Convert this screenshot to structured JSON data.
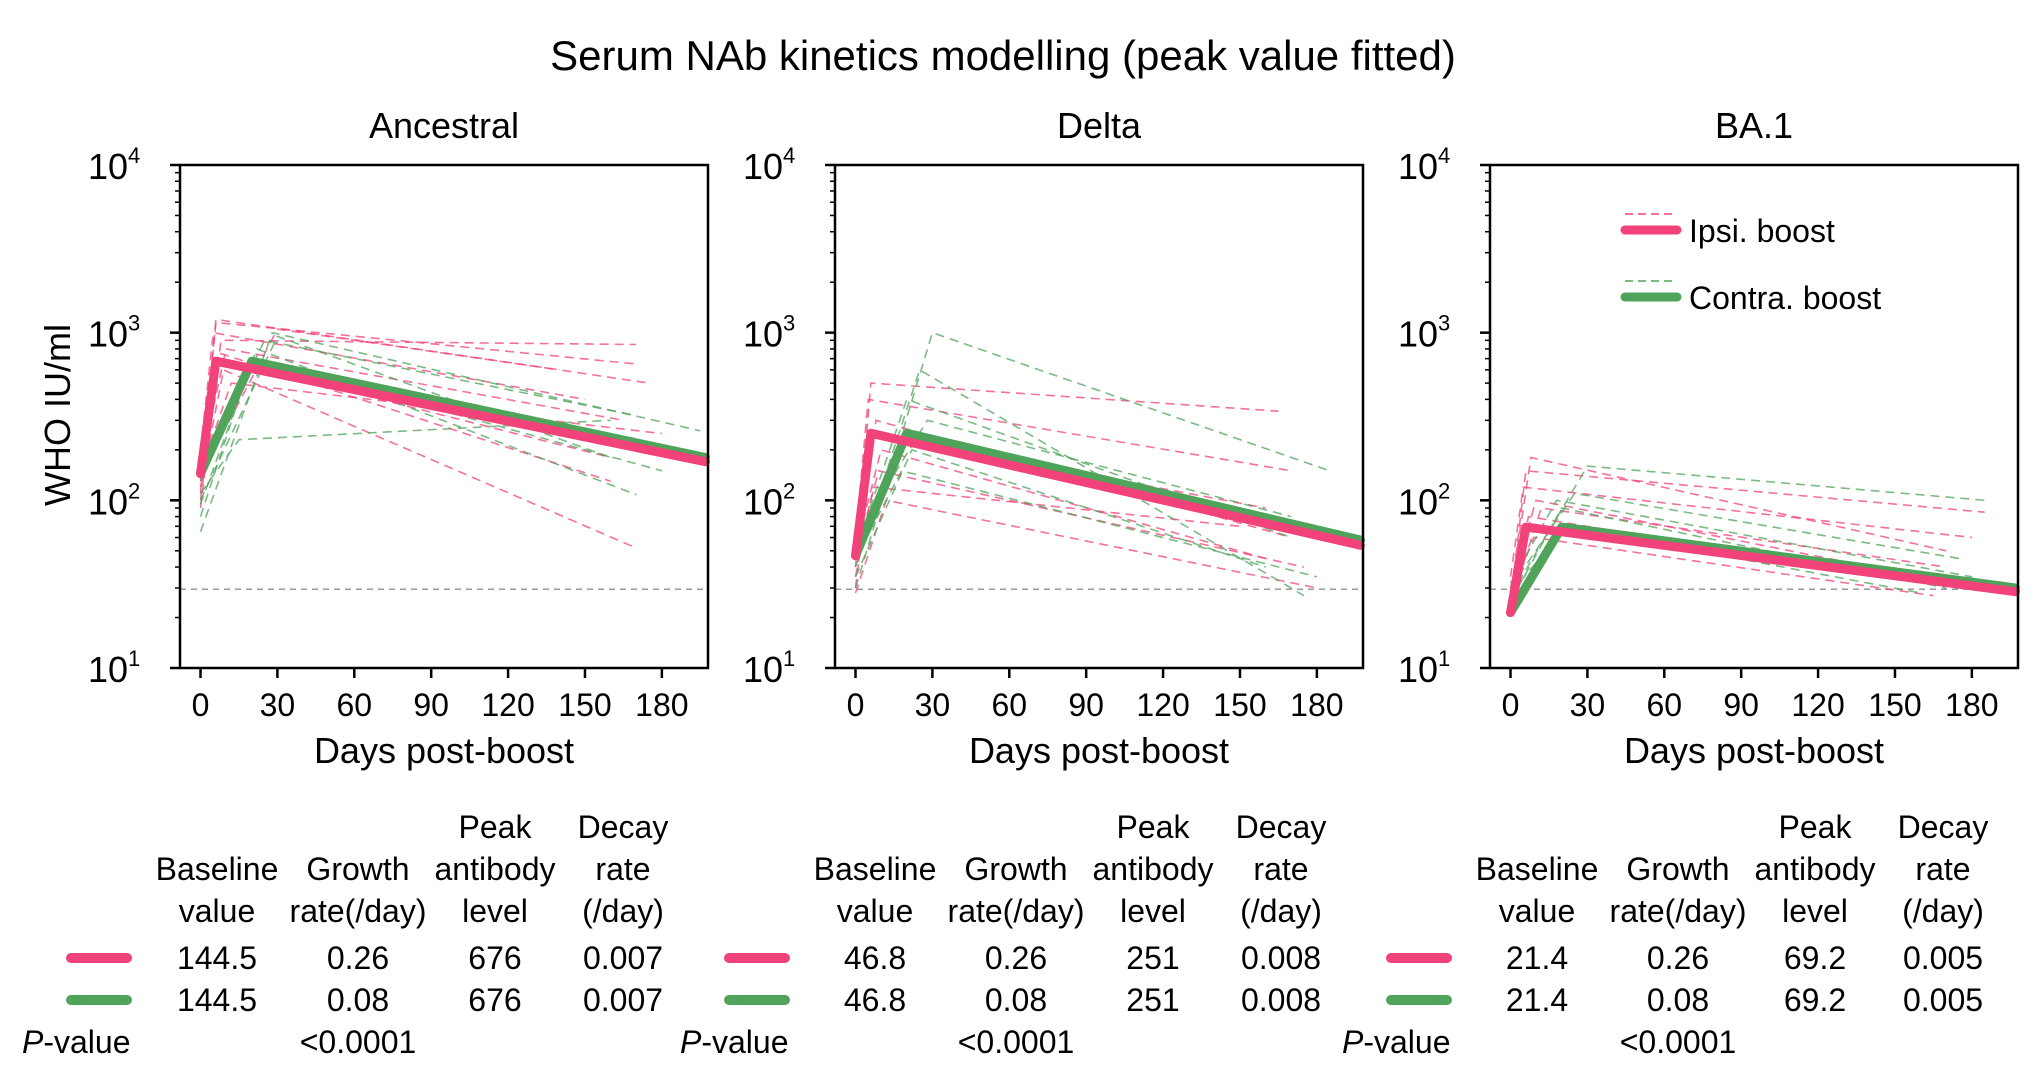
{
  "title": "Serum NAb kinetics modelling (peak value fitted)",
  "colors": {
    "ipsi": "#F2427A",
    "contra": "#4FA35A",
    "lod": "#999999"
  },
  "table_headers": {
    "baseline": [
      "Baseline",
      "value"
    ],
    "growth": [
      "Growth",
      "rate(/day)"
    ],
    "peak": [
      "Peak",
      "antibody",
      "level"
    ],
    "decay": [
      "Decay",
      "rate",
      "(/day)"
    ]
  },
  "p_label_italic": "P",
  "p_label_rest": "-value",
  "chart_data": [
    {
      "type": "line",
      "title": "Ancestral",
      "ylabel": "WHO IU/ml",
      "xlabel": "Days post-boost",
      "xlim": [
        -8,
        198
      ],
      "xticks": [
        0,
        30,
        60,
        90,
        120,
        150,
        180
      ],
      "yscale": "log",
      "ylim": [
        10,
        10000
      ],
      "yticks": [
        {
          "base": "10",
          "exp": "1"
        },
        {
          "base": "10",
          "exp": "2"
        },
        {
          "base": "10",
          "exp": "3"
        },
        {
          "base": "10",
          "exp": "4"
        }
      ],
      "lod": 29.5,
      "series": [
        {
          "name": "Ipsi. boost",
          "color": "#F2427A",
          "x": [
            0,
            6,
            197
          ],
          "y": [
            144.5,
            676,
            170
          ]
        },
        {
          "name": "Contra. boost",
          "color": "#4FA35A",
          "x": [
            0,
            20,
            197
          ],
          "y": [
            144.5,
            676,
            180
          ]
        }
      ],
      "individual_traces": [
        {
          "group": "ipsi",
          "x": [
            0,
            6,
            170
          ],
          "y": [
            130,
            1150,
            650
          ]
        },
        {
          "group": "ipsi",
          "x": [
            0,
            8,
            170
          ],
          "y": [
            100,
            900,
            850
          ]
        },
        {
          "group": "ipsi",
          "x": [
            0,
            10,
            165
          ],
          "y": [
            160,
            800,
            300
          ]
        },
        {
          "group": "ipsi",
          "x": [
            0,
            7,
            160
          ],
          "y": [
            90,
            700,
            180
          ]
        },
        {
          "group": "ipsi",
          "x": [
            0,
            5,
            150
          ],
          "y": [
            200,
            1000,
            400
          ]
        },
        {
          "group": "ipsi",
          "x": [
            0,
            9,
            170
          ],
          "y": [
            120,
            600,
            52
          ]
        },
        {
          "group": "ipsi",
          "x": [
            0,
            12,
            180
          ],
          "y": [
            150,
            500,
            250
          ]
        },
        {
          "group": "ipsi",
          "x": [
            0,
            6,
            175
          ],
          "y": [
            110,
            1200,
            500
          ]
        },
        {
          "group": "ipsi",
          "x": [
            0,
            8,
            160
          ],
          "y": [
            180,
            750,
            130
          ]
        },
        {
          "group": "ipsi",
          "x": [
            0,
            30,
            140
          ],
          "y": [
            140,
            1050,
            600
          ]
        },
        {
          "group": "contra",
          "x": [
            0,
            28,
            195
          ],
          "y": [
            65,
            1000,
            260
          ]
        },
        {
          "group": "contra",
          "x": [
            0,
            20,
            180
          ],
          "y": [
            80,
            700,
            150
          ]
        },
        {
          "group": "contra",
          "x": [
            0,
            25,
            170
          ],
          "y": [
            150,
            900,
            320
          ]
        },
        {
          "group": "contra",
          "x": [
            0,
            15,
            160
          ],
          "y": [
            110,
            230,
            300
          ]
        },
        {
          "group": "contra",
          "x": [
            0,
            22,
            170
          ],
          "y": [
            95,
            800,
            108
          ]
        },
        {
          "group": "contra",
          "x": [
            0,
            18,
            175
          ],
          "y": [
            130,
            600,
            220
          ]
        },
        {
          "group": "contra",
          "x": [
            0,
            30,
            160
          ],
          "y": [
            100,
            950,
            180
          ]
        }
      ],
      "table": {
        "ipsi": {
          "baseline": "144.5",
          "growth": "0.26",
          "peak": "676",
          "decay": "0.007"
        },
        "contra": {
          "baseline": "144.5",
          "growth": "0.08",
          "peak": "676",
          "decay": "0.007"
        },
        "p_value": "<0.0001"
      }
    },
    {
      "type": "line",
      "title": "Delta",
      "ylabel": "",
      "xlabel": "Days post-boost",
      "xlim": [
        -8,
        198
      ],
      "xticks": [
        0,
        30,
        60,
        90,
        120,
        150,
        180
      ],
      "yscale": "log",
      "ylim": [
        10,
        10000
      ],
      "yticks": [
        {
          "base": "10",
          "exp": "1"
        },
        {
          "base": "10",
          "exp": "2"
        },
        {
          "base": "10",
          "exp": "3"
        },
        {
          "base": "10",
          "exp": "4"
        }
      ],
      "lod": 29.5,
      "series": [
        {
          "name": "Ipsi. boost",
          "color": "#F2427A",
          "x": [
            0,
            6,
            197
          ],
          "y": [
            46.8,
            251,
            54
          ]
        },
        {
          "name": "Contra. boost",
          "color": "#4FA35A",
          "x": [
            0,
            20,
            197
          ],
          "y": [
            46.8,
            251,
            58
          ]
        }
      ],
      "individual_traces": [
        {
          "group": "ipsi",
          "x": [
            0,
            6,
            165
          ],
          "y": [
            40,
            500,
            340
          ]
        },
        {
          "group": "ipsi",
          "x": [
            0,
            8,
            170
          ],
          "y": [
            30,
            300,
            60
          ]
        },
        {
          "group": "ipsi",
          "x": [
            0,
            10,
            160
          ],
          "y": [
            50,
            200,
            45
          ]
        },
        {
          "group": "ipsi",
          "x": [
            0,
            7,
            150
          ],
          "y": [
            35,
            120,
            70
          ]
        },
        {
          "group": "ipsi",
          "x": [
            0,
            5,
            170
          ],
          "y": [
            60,
            400,
            150
          ]
        },
        {
          "group": "ipsi",
          "x": [
            0,
            9,
            175
          ],
          "y": [
            45,
            150,
            40
          ]
        },
        {
          "group": "ipsi",
          "x": [
            0,
            12,
            180
          ],
          "y": [
            28,
            100,
            30
          ]
        },
        {
          "group": "ipsi",
          "x": [
            0,
            6,
            160
          ],
          "y": [
            55,
            250,
            90
          ]
        },
        {
          "group": "contra",
          "x": [
            0,
            30,
            185
          ],
          "y": [
            30,
            1000,
            150
          ]
        },
        {
          "group": "contra",
          "x": [
            0,
            25,
            175
          ],
          "y": [
            40,
            600,
            27
          ]
        },
        {
          "group": "contra",
          "x": [
            0,
            20,
            170
          ],
          "y": [
            50,
            400,
            60
          ]
        },
        {
          "group": "contra",
          "x": [
            0,
            22,
            160
          ],
          "y": [
            35,
            200,
            40
          ]
        },
        {
          "group": "contra",
          "x": [
            0,
            18,
            180
          ],
          "y": [
            45,
            150,
            35
          ]
        },
        {
          "group": "contra",
          "x": [
            0,
            28,
            170
          ],
          "y": [
            60,
            300,
            80
          ]
        }
      ],
      "table": {
        "ipsi": {
          "baseline": "46.8",
          "growth": "0.26",
          "peak": "251",
          "decay": "0.008"
        },
        "contra": {
          "baseline": "46.8",
          "growth": "0.08",
          "peak": "251",
          "decay": "0.008"
        },
        "p_value": "<0.0001"
      }
    },
    {
      "type": "line",
      "title": "BA.1",
      "ylabel": "",
      "xlabel": "Days post-boost",
      "xlim": [
        -8,
        198
      ],
      "xticks": [
        0,
        30,
        60,
        90,
        120,
        150,
        180
      ],
      "yscale": "log",
      "ylim": [
        10,
        10000
      ],
      "yticks": [
        {
          "base": "10",
          "exp": "1"
        },
        {
          "base": "10",
          "exp": "2"
        },
        {
          "base": "10",
          "exp": "3"
        },
        {
          "base": "10",
          "exp": "4"
        }
      ],
      "lod": 29.5,
      "legend": {
        "position": "top-right",
        "entries": [
          "Ipsi. boost",
          "Contra. boost"
        ]
      },
      "series": [
        {
          "name": "Ipsi. boost",
          "color": "#F2427A",
          "x": [
            0,
            6,
            197
          ],
          "y": [
            21.4,
            69.2,
            28.5
          ]
        },
        {
          "name": "Contra. boost",
          "color": "#4FA35A",
          "x": [
            0,
            20,
            197
          ],
          "y": [
            21.4,
            69.2,
            30
          ]
        }
      ],
      "individual_traces": [
        {
          "group": "ipsi",
          "x": [
            0,
            6,
            185
          ],
          "y": [
            25,
            150,
            85
          ]
        },
        {
          "group": "ipsi",
          "x": [
            0,
            8,
            170
          ],
          "y": [
            28,
            180,
            50
          ]
        },
        {
          "group": "ipsi",
          "x": [
            0,
            10,
            160
          ],
          "y": [
            30,
            100,
            35
          ]
        },
        {
          "group": "ipsi",
          "x": [
            0,
            7,
            175
          ],
          "y": [
            22,
            80,
            30
          ]
        },
        {
          "group": "ipsi",
          "x": [
            0,
            5,
            180
          ],
          "y": [
            35,
            120,
            60
          ]
        },
        {
          "group": "ipsi",
          "x": [
            0,
            9,
            165
          ],
          "y": [
            26,
            60,
            27
          ]
        },
        {
          "group": "ipsi",
          "x": [
            0,
            12,
            170
          ],
          "y": [
            24,
            90,
            40
          ]
        },
        {
          "group": "contra",
          "x": [
            0,
            30,
            185
          ],
          "y": [
            27,
            160,
            100
          ]
        },
        {
          "group": "contra",
          "x": [
            0,
            25,
            175
          ],
          "y": [
            30,
            110,
            45
          ]
        },
        {
          "group": "contra",
          "x": [
            0,
            20,
            170
          ],
          "y": [
            25,
            90,
            30
          ]
        },
        {
          "group": "contra",
          "x": [
            0,
            22,
            160
          ],
          "y": [
            28,
            70,
            28
          ]
        },
        {
          "group": "contra",
          "x": [
            0,
            18,
            180
          ],
          "y": [
            32,
            100,
            35
          ]
        }
      ],
      "table": {
        "ipsi": {
          "baseline": "21.4",
          "growth": "0.26",
          "peak": "69.2",
          "decay": "0.005"
        },
        "contra": {
          "baseline": "21.4",
          "growth": "0.08",
          "peak": "69.2",
          "decay": "0.005"
        },
        "p_value": "<0.0001"
      }
    }
  ]
}
